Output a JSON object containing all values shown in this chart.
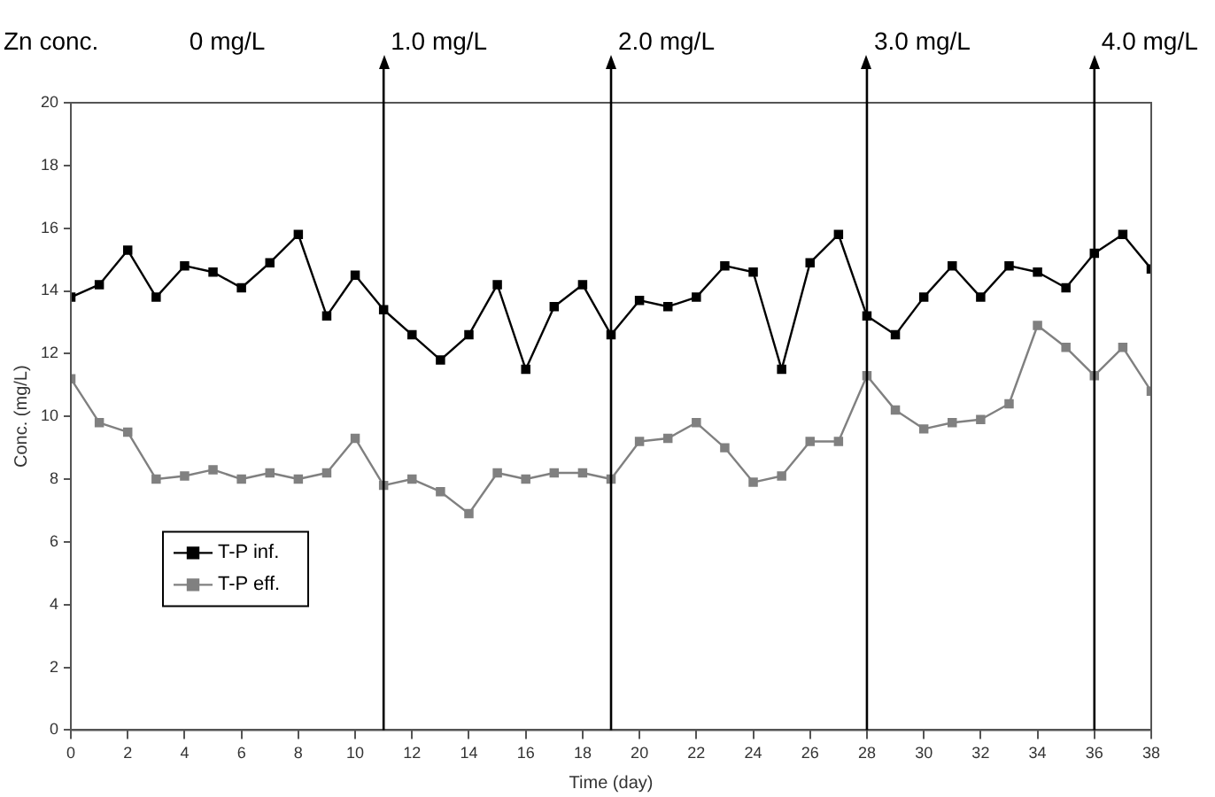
{
  "chart_data": {
    "type": "line",
    "xlabel": "Time (day)",
    "ylabel": "Conc. (mg/L)",
    "x": [
      0,
      1,
      2,
      3,
      4,
      5,
      6,
      7,
      8,
      9,
      10,
      11,
      12,
      13,
      14,
      15,
      16,
      17,
      18,
      19,
      20,
      21,
      22,
      23,
      24,
      25,
      26,
      27,
      28,
      29,
      30,
      31,
      32,
      33,
      34,
      35,
      36,
      37,
      38
    ],
    "series": [
      {
        "name": "T-P inf.",
        "color": "#000000",
        "values": [
          13.8,
          14.2,
          15.3,
          13.8,
          14.8,
          14.6,
          14.1,
          14.9,
          15.8,
          13.2,
          14.5,
          13.4,
          12.6,
          11.8,
          12.6,
          14.2,
          11.5,
          13.5,
          14.2,
          12.6,
          13.7,
          13.5,
          13.8,
          14.8,
          14.6,
          11.5,
          14.9,
          15.8,
          13.2,
          12.6,
          13.8,
          14.8,
          13.8,
          14.8,
          14.6,
          14.1,
          15.2,
          15.8,
          14.7
        ]
      },
      {
        "name": "T-P eff.",
        "color": "#808080",
        "values": [
          11.2,
          9.8,
          9.5,
          8.0,
          8.1,
          8.3,
          8.0,
          8.2,
          8.0,
          8.2,
          9.3,
          7.8,
          8.0,
          7.6,
          6.9,
          8.2,
          8.0,
          8.2,
          8.2,
          8.0,
          9.2,
          9.3,
          9.8,
          9.0,
          7.9,
          8.1,
          9.2,
          9.2,
          11.3,
          10.2,
          9.6,
          9.8,
          9.9,
          10.4,
          12.9,
          12.2,
          11.3,
          12.2,
          10.8
        ]
      }
    ],
    "xlim": [
      0,
      38
    ],
    "xticks": [
      0,
      2,
      4,
      6,
      8,
      10,
      12,
      14,
      16,
      18,
      20,
      22,
      24,
      26,
      28,
      30,
      32,
      34,
      36,
      38
    ],
    "ylim": [
      0,
      20
    ],
    "yticks": [
      0,
      2,
      4,
      6,
      8,
      10,
      12,
      14,
      16,
      18,
      20
    ],
    "ref_lines": [
      {
        "axis": "x",
        "value": 11,
        "label": "1.0 mg/L"
      },
      {
        "axis": "x",
        "value": 19,
        "label": "2.0 mg/L"
      },
      {
        "axis": "x",
        "value": 28,
        "label": "3.0 mg/L"
      },
      {
        "axis": "x",
        "value": 36,
        "label": "4.0 mg/L"
      }
    ],
    "annotations": [
      "Zn conc.",
      "0 mg/L"
    ],
    "grid": false,
    "legend": "bottom left",
    "marker": "square",
    "line_style": "solid"
  }
}
